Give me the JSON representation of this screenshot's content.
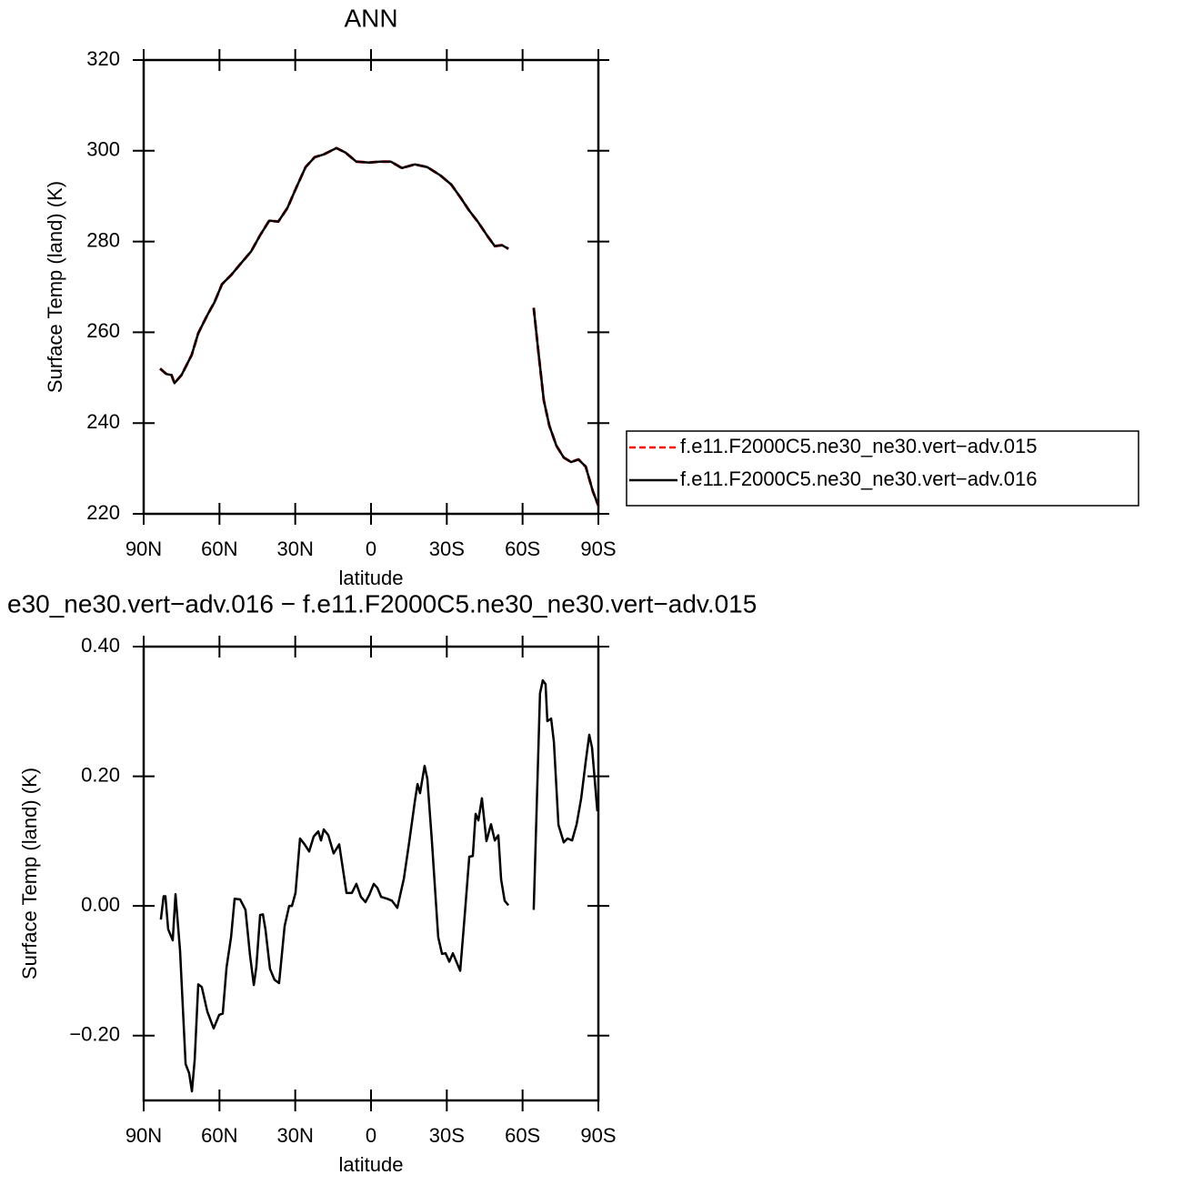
{
  "chart_data": [
    {
      "type": "line",
      "title": "ANN",
      "xlabel": "latitude",
      "ylabel": "Surface Temp (land) (K)",
      "x": [
        83.5,
        81,
        79,
        77.8,
        75,
        71,
        68.4,
        64.8,
        62,
        59,
        55.4,
        51.8,
        47.5,
        43.9,
        40.3,
        36.7,
        33.1,
        29.5,
        25.9,
        22.3,
        18.7,
        13.7,
        10.1,
        5.8,
        0.7,
        -3.6,
        -7.9,
        -12.2,
        -17.3,
        -22.3,
        -27.4,
        -31.7,
        -35.3,
        -38.9,
        -42.5,
        -46.1,
        -49,
        -51.8,
        -54.4,
        -59.4,
        -64.4,
        -66.2,
        -68.4,
        -70.6,
        -73.4,
        -76.3,
        -79.2,
        -82.1,
        -85,
        -87.8,
        -90
      ],
      "series": [
        {
          "name": "f.e11.F2000C5.ne30_ne30.vert−adv.015",
          "color": "#ff0000",
          "line_style": "dashed",
          "values": [
            252.0,
            250.8,
            250.6,
            248.8,
            250.6,
            255.0,
            259.8,
            263.8,
            266.6,
            270.6,
            272.6,
            275.0,
            277.8,
            281.4,
            284.6,
            284.4,
            287.4,
            292.0,
            296.4,
            298.6,
            299.2,
            300.6,
            299.6,
            297.6,
            297.4,
            297.6,
            297.6,
            296.2,
            297.0,
            296.4,
            294.6,
            292.6,
            289.8,
            286.8,
            284.2,
            281.2,
            279.0,
            279.2,
            278.4,
            null,
            265.4,
            256.0,
            245.0,
            239.4,
            235.0,
            232.4,
            231.4,
            232.0,
            230.4,
            225.0,
            221.8
          ]
        },
        {
          "name": "f.e11.F2000C5.ne30_ne30.vert−adv.016",
          "color": "#000000",
          "line_style": "solid",
          "values": [
            252.0,
            250.8,
            250.6,
            248.8,
            250.6,
            255.0,
            259.8,
            263.8,
            266.6,
            270.6,
            272.6,
            275.0,
            277.8,
            281.4,
            284.6,
            284.4,
            287.4,
            292.0,
            296.4,
            298.6,
            299.2,
            300.6,
            299.6,
            297.6,
            297.4,
            297.6,
            297.6,
            296.2,
            297.0,
            296.4,
            294.6,
            292.6,
            289.8,
            286.8,
            284.2,
            281.2,
            279.0,
            279.2,
            278.4,
            null,
            265.4,
            256.0,
            245.0,
            239.4,
            235.0,
            232.4,
            231.4,
            232.0,
            230.4,
            225.0,
            221.8
          ]
        }
      ],
      "xlim": [
        90,
        -90
      ],
      "xticks": [
        {
          "value": 90,
          "label": "90N"
        },
        {
          "value": 60,
          "label": "60N"
        },
        {
          "value": 30,
          "label": "30N"
        },
        0,
        {
          "value": -30,
          "label": "30S"
        },
        {
          "value": -60,
          "label": "60S"
        },
        {
          "value": -90,
          "label": "90S"
        }
      ],
      "ylim": [
        220,
        320
      ],
      "yticks": [
        220,
        240,
        260,
        280,
        300,
        320
      ],
      "legend": "right"
    },
    {
      "type": "line",
      "title": "e30_ne30.vert−adv.016 − f.e11.F2000C5.ne30_ne30.vert−adv.015",
      "xlabel": "latitude",
      "ylabel": "Surface Temp (land) (K)",
      "x": [
        83.2,
        82.1,
        81.4,
        80.3,
        78.5,
        77.4,
        75.6,
        73.4,
        72,
        70.9,
        69.8,
        68.4,
        67,
        64.8,
        62.3,
        60.1,
        58.7,
        57.2,
        55.4,
        54,
        51.8,
        49.7,
        47.9,
        46.4,
        45.4,
        43.9,
        42.8,
        41.8,
        40,
        38.2,
        36.4,
        34.2,
        32.4,
        31.3,
        29.9,
        28.1,
        26.3,
        24.5,
        22.7,
        20.9,
        19.8,
        18.7,
        16.9,
        14.8,
        12.6,
        9.7,
        7.6,
        5.8,
        4,
        2.2,
        0.7,
        -1.1,
        -2.5,
        -4,
        -6.5,
        -8.3,
        -10.4,
        -13,
        -15.1,
        -17.3,
        -18.4,
        -19.4,
        -21.2,
        -22.3,
        -24.1,
        -26.6,
        -28.1,
        -29.5,
        -31,
        -32.4,
        -35.3,
        -37.1,
        -38.9,
        -40.3,
        -41.4,
        -42.5,
        -43.9,
        -45.7,
        -47.5,
        -49,
        -50.4,
        -51.5,
        -52.9,
        -54.4,
        -59.4,
        -64.4,
        -66.9,
        -68,
        -69.1,
        -69.8,
        -71.3,
        -72.4,
        -74.2,
        -76.3,
        -77.8,
        -79.6,
        -81.4,
        -83.2,
        -85,
        -86.4,
        -87.5,
        -89.6
      ],
      "series": [
        {
          "color": "#000000",
          "line_style": "solid",
          "values": [
            -0.021,
            0.015,
            0.015,
            -0.036,
            -0.053,
            0.018,
            -0.069,
            -0.244,
            -0.258,
            -0.286,
            -0.237,
            -0.121,
            -0.125,
            -0.163,
            -0.189,
            -0.168,
            -0.166,
            -0.095,
            -0.048,
            0.011,
            0.01,
            -0.006,
            -0.076,
            -0.122,
            -0.094,
            -0.014,
            -0.013,
            -0.036,
            -0.097,
            -0.114,
            -0.119,
            -0.031,
            0,
            0,
            0.02,
            0.104,
            0.095,
            0.084,
            0.107,
            0.115,
            0.101,
            0.118,
            0.109,
            0.081,
            0.095,
            0.02,
            0.02,
            0.034,
            0.014,
            0.006,
            0.017,
            0.034,
            0.028,
            0.014,
            0.011,
            0.008,
            -0.003,
            0.042,
            0.098,
            0.16,
            0.188,
            0.174,
            0.216,
            0.196,
            0.1,
            -0.048,
            -0.074,
            -0.073,
            -0.086,
            -0.073,
            -0.1,
            -0.014,
            0.076,
            0.077,
            0.142,
            0.132,
            0.166,
            0.1,
            0.126,
            0.101,
            0.109,
            0.041,
            0.008,
            0.001,
            null,
            -0.006,
            0.328,
            0.348,
            0.342,
            0.285,
            0.289,
            0.253,
            0.125,
            0.098,
            0.104,
            0.101,
            0.126,
            0.166,
            0.223,
            0.264,
            0.244,
            0.146
          ]
        }
      ],
      "xlim": [
        90,
        -90
      ],
      "xticks": [
        {
          "value": 90,
          "label": "90N"
        },
        {
          "value": 60,
          "label": "60N"
        },
        {
          "value": 30,
          "label": "30N"
        },
        0,
        {
          "value": -30,
          "label": "30S"
        },
        {
          "value": -60,
          "label": "60S"
        },
        {
          "value": -90,
          "label": "90S"
        }
      ],
      "ylim": [
        -0.3,
        0.4
      ],
      "yticks": [
        {
          "value": -0.2,
          "label": "−0.20"
        },
        {
          "value": 0,
          "label": "0.00"
        },
        {
          "value": 0.2,
          "label": "0.20"
        },
        {
          "value": 0.4,
          "label": "0.40"
        }
      ]
    }
  ]
}
